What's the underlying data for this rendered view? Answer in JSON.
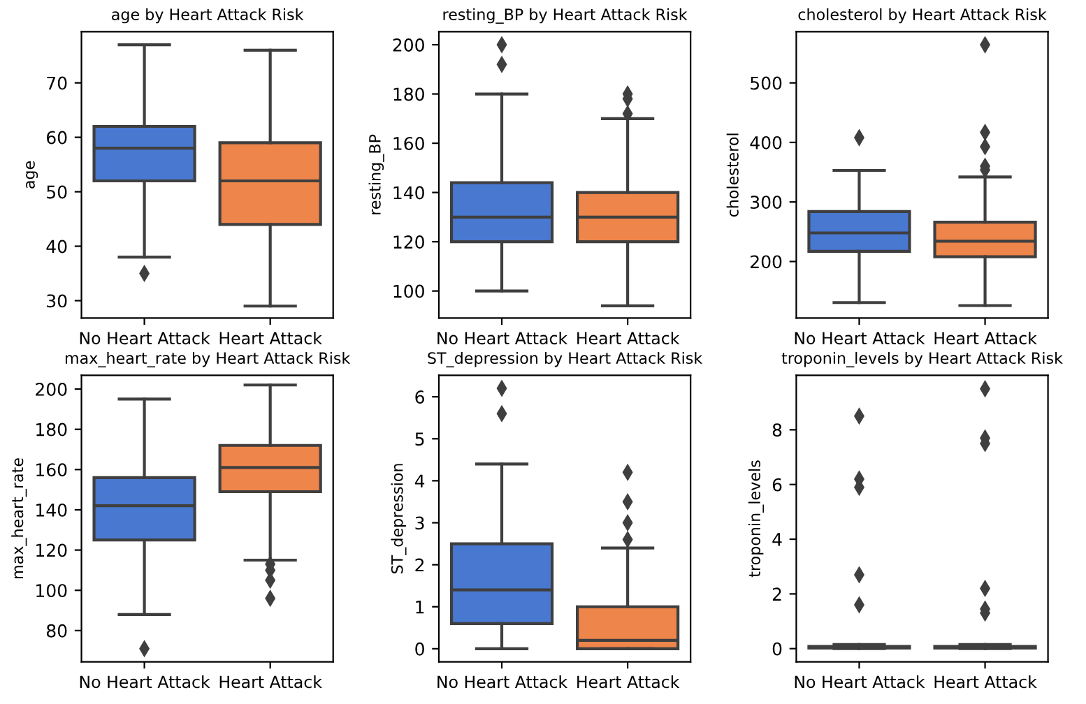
{
  "chart_data": [
    {
      "type": "box",
      "title": "age by Heart Attack Risk",
      "ylabel": "age",
      "categories": [
        "No Heart Attack",
        "Heart Attack"
      ],
      "colors": [
        "#4878d0",
        "#ee854a"
      ],
      "ylim": [
        26.8,
        79.4
      ],
      "yticks": [
        30,
        40,
        50,
        60,
        70
      ],
      "grid": false,
      "legend": false,
      "marker": "diamond",
      "boxes": [
        {
          "low": 38,
          "q1": 52,
          "median": 58,
          "q3": 62,
          "high": 77,
          "outliers": [
            35
          ]
        },
        {
          "low": 29,
          "q1": 44,
          "median": 52,
          "q3": 59,
          "high": 76
        }
      ]
    },
    {
      "type": "box",
      "title": "resting_BP by Heart Attack Risk",
      "ylabel": "resting_BP",
      "categories": [
        "No Heart Attack",
        "Heart Attack"
      ],
      "colors": [
        "#4878d0",
        "#ee854a"
      ],
      "ylim": [
        89,
        205.3
      ],
      "yticks": [
        100,
        120,
        140,
        160,
        180,
        200
      ],
      "grid": false,
      "legend": false,
      "marker": "diamond",
      "boxes": [
        {
          "low": 100,
          "q1": 120,
          "median": 130,
          "q3": 144,
          "high": 180,
          "outliers": [
            200,
            192
          ]
        },
        {
          "low": 94,
          "q1": 120,
          "median": 130,
          "q3": 140,
          "high": 170,
          "outliers": [
            180,
            178,
            172
          ]
        }
      ]
    },
    {
      "type": "box",
      "title": "cholesterol by Heart Attack Risk",
      "ylabel": "cholesterol",
      "categories": [
        "No Heart Attack",
        "Heart Attack"
      ],
      "colors": [
        "#4878d0",
        "#ee854a"
      ],
      "ylim": [
        105,
        586
      ],
      "yticks": [
        200,
        300,
        400,
        500
      ],
      "grid": false,
      "legend": false,
      "marker": "diamond",
      "boxes": [
        {
          "low": 131,
          "q1": 217,
          "median": 248,
          "q3": 284,
          "high": 353,
          "outliers": [
            408
          ]
        },
        {
          "low": 126,
          "q1": 208,
          "median": 234,
          "q3": 266,
          "high": 342,
          "outliers": [
            564,
            417,
            393,
            360,
            354
          ]
        }
      ]
    },
    {
      "type": "box",
      "title": "max_heart_rate by Heart Attack Risk",
      "ylabel": "max_heart_rate",
      "categories": [
        "No Heart Attack",
        "Heart Attack"
      ],
      "colors": [
        "#4878d0",
        "#ee854a"
      ],
      "ylim": [
        64.5,
        206.8
      ],
      "yticks": [
        80,
        100,
        120,
        140,
        160,
        180,
        200
      ],
      "grid": false,
      "legend": false,
      "marker": "diamond",
      "boxes": [
        {
          "low": 88,
          "q1": 125,
          "median": 142,
          "q3": 156,
          "high": 195,
          "outliers": [
            71
          ]
        },
        {
          "low": 115,
          "q1": 149,
          "median": 161,
          "q3": 172,
          "high": 202,
          "outliers": [
            113,
            110,
            105,
            96
          ]
        }
      ]
    },
    {
      "type": "box",
      "title": "ST_depression by Heart Attack Risk",
      "ylabel": "ST_depression",
      "categories": [
        "No Heart Attack",
        "Heart Attack"
      ],
      "colors": [
        "#4878d0",
        "#ee854a"
      ],
      "ylim": [
        -0.31,
        6.51
      ],
      "yticks": [
        0,
        1,
        2,
        3,
        4,
        5,
        6
      ],
      "grid": false,
      "legend": false,
      "marker": "diamond",
      "boxes": [
        {
          "low": 0,
          "q1": 0.6,
          "median": 1.4,
          "q3": 2.5,
          "high": 4.4,
          "outliers": [
            6.2,
            5.6
          ]
        },
        {
          "low": 0,
          "q1": 0,
          "median": 0.2,
          "q3": 1.0,
          "high": 2.4,
          "outliers": [
            4.2,
            3.5,
            3.0,
            2.6
          ]
        }
      ]
    },
    {
      "type": "box",
      "title": "troponin_levels by Heart Attack Risk",
      "ylabel": "troponin_levels",
      "categories": [
        "No Heart Attack",
        "Heart Attack"
      ],
      "colors": [
        "#4878d0",
        "#ee854a"
      ],
      "ylim": [
        -0.48,
        9.99
      ],
      "yticks": [
        0,
        2,
        4,
        6,
        8
      ],
      "grid": false,
      "legend": false,
      "marker": "diamond",
      "boxes": [
        {
          "low": 0,
          "q1": 0.02,
          "median": 0.05,
          "q3": 0.08,
          "high": 0.15,
          "outliers": [
            8.5,
            6.2,
            5.9,
            2.7,
            1.6
          ]
        },
        {
          "low": 0,
          "q1": 0.02,
          "median": 0.05,
          "q3": 0.08,
          "high": 0.15,
          "outliers": [
            9.5,
            7.7,
            7.5,
            2.2,
            1.45,
            1.3
          ]
        }
      ]
    }
  ]
}
